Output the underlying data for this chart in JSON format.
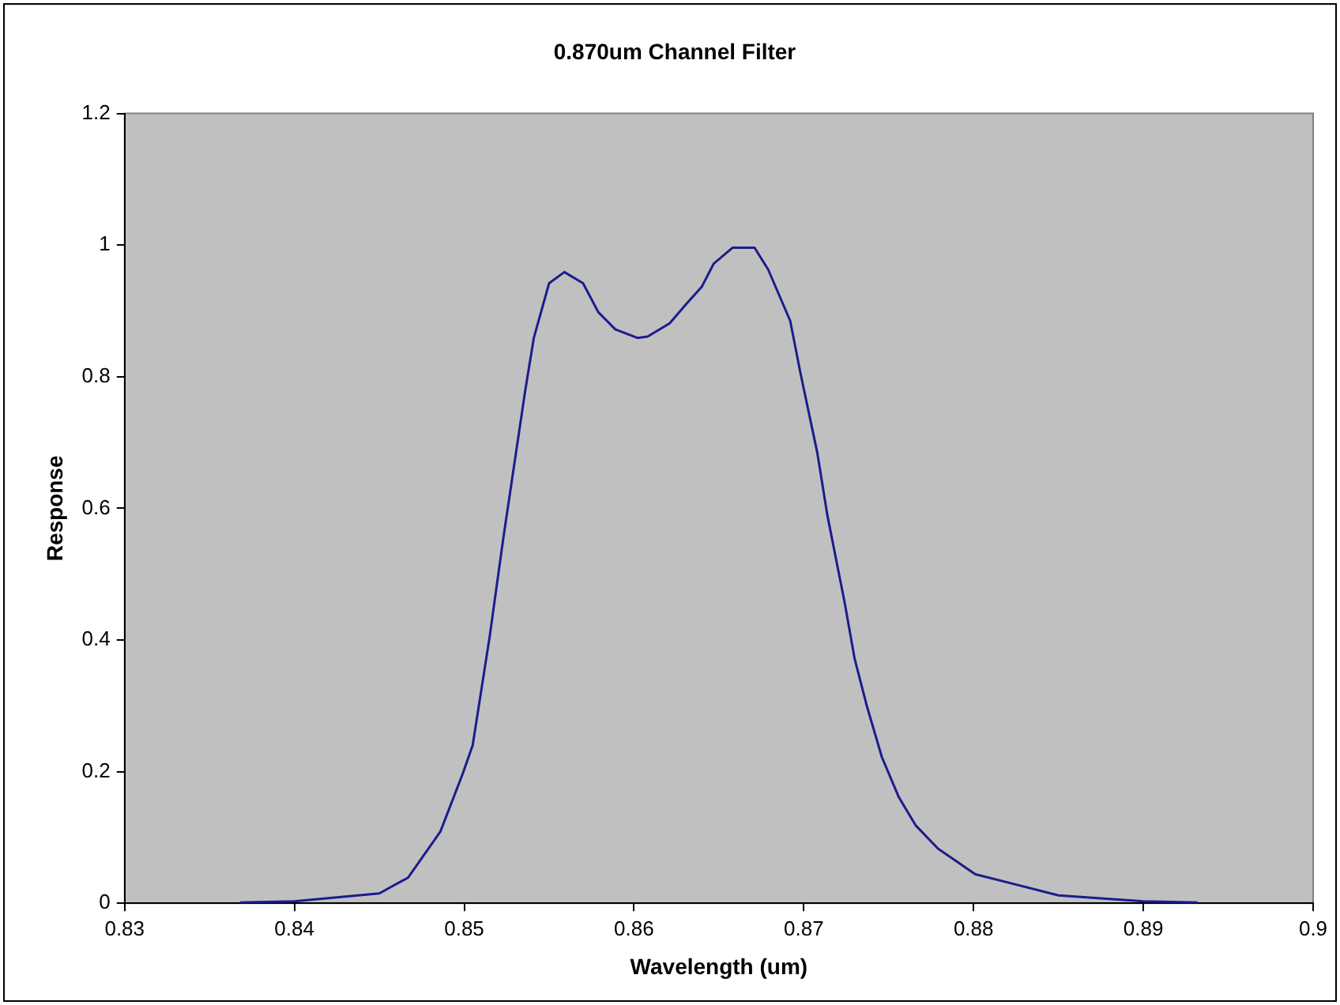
{
  "chart_data": {
    "type": "line",
    "title": "0.870um Channel Filter",
    "xlabel": "Wavelength (um)",
    "ylabel": "Response",
    "x": [
      0.8368,
      0.84,
      0.845,
      0.8467,
      0.8486,
      0.8499,
      0.8505,
      0.8515,
      0.8523,
      0.8528,
      0.8536,
      0.8541,
      0.855,
      0.8559,
      0.857,
      0.8579,
      0.8589,
      0.8602,
      0.8608,
      0.8621,
      0.8631,
      0.864,
      0.8647,
      0.8658,
      0.8671,
      0.8679,
      0.8692,
      0.8698,
      0.8708,
      0.8714,
      0.8724,
      0.873,
      0.8737,
      0.8746,
      0.8756,
      0.8766,
      0.8779,
      0.8801,
      0.885,
      0.89,
      0.8932
    ],
    "series": [
      {
        "color": "#1c1c8c",
        "values": [
          0.001,
          0.003,
          0.015,
          0.039,
          0.109,
          0.196,
          0.24,
          0.405,
          0.554,
          0.641,
          0.78,
          0.859,
          0.942,
          0.959,
          0.942,
          0.898,
          0.872,
          0.859,
          0.861,
          0.881,
          0.911,
          0.937,
          0.972,
          0.996,
          0.996,
          0.963,
          0.885,
          0.806,
          0.684,
          0.588,
          0.458,
          0.371,
          0.301,
          0.222,
          0.161,
          0.118,
          0.083,
          0.044,
          0.012,
          0.003,
          0.001
        ]
      }
    ],
    "xlim": [
      0.83,
      0.9
    ],
    "xticks": [
      0.83,
      0.84,
      0.85,
      0.86,
      0.87,
      0.88,
      0.89,
      0.9
    ],
    "ylim": [
      0,
      1.2
    ],
    "yticks": [
      0,
      0.2,
      0.4,
      0.6,
      0.8,
      1,
      1.2
    ],
    "grid": false,
    "legend": false,
    "marker": "none",
    "line_style": "solid"
  }
}
